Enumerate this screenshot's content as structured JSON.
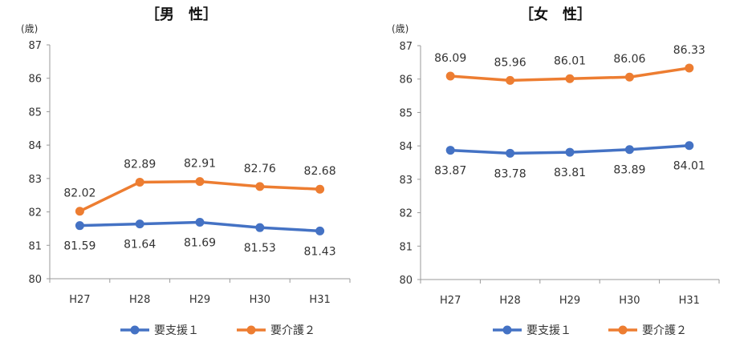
{
  "chart_data": [
    {
      "type": "line",
      "title": "［男　性］",
      "ylabel": "(歳)",
      "xlabel": "",
      "categories": [
        "H27",
        "H28",
        "H29",
        "H30",
        "H31"
      ],
      "ylim": [
        80,
        87
      ],
      "yticks": [
        80,
        81,
        82,
        83,
        84,
        85,
        86,
        87
      ],
      "grid": false,
      "legend": "bottom",
      "series": [
        {
          "name": "要支援１",
          "color": "#4472C4",
          "values": [
            81.59,
            81.64,
            81.69,
            81.53,
            81.43
          ],
          "labels": [
            "81.59",
            "81.64",
            "81.69",
            "81.53",
            "81.43"
          ],
          "label_pos": "below"
        },
        {
          "name": "要介護２",
          "color": "#ED7D31",
          "values": [
            82.02,
            82.89,
            82.91,
            82.76,
            82.68
          ],
          "labels": [
            "82.02",
            "82.89",
            "82.91",
            "82.76",
            "82.68"
          ],
          "label_pos": "above"
        }
      ]
    },
    {
      "type": "line",
      "title": "［女　性］",
      "ylabel": "(歳)",
      "xlabel": "",
      "categories": [
        "H27",
        "H28",
        "H29",
        "H30",
        "H31"
      ],
      "ylim": [
        80,
        87
      ],
      "yticks": [
        80,
        81,
        82,
        83,
        84,
        85,
        86,
        87
      ],
      "grid": false,
      "legend": "bottom",
      "series": [
        {
          "name": "要支援１",
          "color": "#4472C4",
          "values": [
            83.87,
            83.78,
            83.81,
            83.89,
            84.01
          ],
          "labels": [
            "83.87",
            "83.78",
            "83.81",
            "83.89",
            "84.01"
          ],
          "label_pos": "below"
        },
        {
          "name": "要介護２",
          "color": "#ED7D31",
          "values": [
            86.09,
            85.96,
            86.01,
            86.06,
            86.33
          ],
          "labels": [
            "86.09",
            "85.96",
            "86.01",
            "86.06",
            "86.33"
          ],
          "label_pos": "above"
        }
      ]
    }
  ]
}
